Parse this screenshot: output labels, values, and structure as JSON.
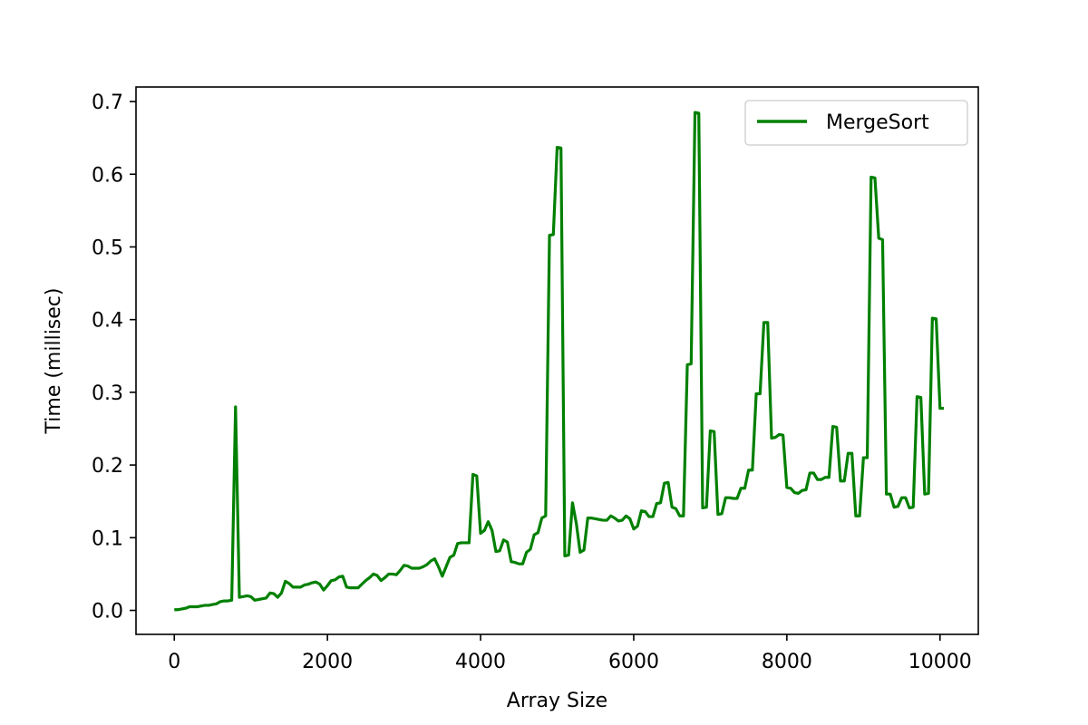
{
  "chart_data": {
    "type": "line",
    "title": "",
    "xlabel": "Array Size",
    "ylabel": "Time (millisec)",
    "xlim": [
      -500,
      10500
    ],
    "ylim": [
      -0.033,
      0.72
    ],
    "xticks": [
      0,
      2000,
      4000,
      6000,
      8000,
      10000
    ],
    "yticks": [
      0.0,
      0.1,
      0.2,
      0.3,
      0.4,
      0.5,
      0.6,
      0.7
    ],
    "xtick_labels": [
      "0",
      "2000",
      "4000",
      "6000",
      "8000",
      "10000"
    ],
    "ytick_labels": [
      "0.0",
      "0.1",
      "0.2",
      "0.3",
      "0.4",
      "0.5",
      "0.6",
      "0.7"
    ],
    "grid": false,
    "legend_position": "top-right",
    "colors": {
      "series": "#008000"
    },
    "series": [
      {
        "name": "MergeSort",
        "x": [
          0,
          50,
          100,
          150,
          200,
          250,
          300,
          350,
          400,
          450,
          500,
          550,
          600,
          650,
          700,
          750,
          800,
          850,
          900,
          950,
          1000,
          1050,
          1100,
          1150,
          1200,
          1250,
          1300,
          1350,
          1400,
          1450,
          1500,
          1550,
          1600,
          1650,
          1700,
          1750,
          1800,
          1850,
          1900,
          1950,
          2000,
          2050,
          2100,
          2150,
          2200,
          2250,
          2300,
          2350,
          2400,
          2450,
          2500,
          2550,
          2600,
          2650,
          2700,
          2750,
          2800,
          2850,
          2900,
          2950,
          3000,
          3050,
          3100,
          3150,
          3200,
          3250,
          3300,
          3350,
          3400,
          3450,
          3500,
          3550,
          3600,
          3650,
          3700,
          3750,
          3800,
          3850,
          3900,
          3950,
          4000,
          4050,
          4100,
          4150,
          4200,
          4250,
          4300,
          4350,
          4400,
          4450,
          4500,
          4550,
          4600,
          4650,
          4700,
          4750,
          4800,
          4850,
          4900,
          4950,
          5000,
          5050,
          5100,
          5150,
          5200,
          5250,
          5300,
          5350,
          5400,
          5450,
          5500,
          5550,
          5600,
          5650,
          5700,
          5750,
          5800,
          5850,
          5900,
          5950,
          6000,
          6050,
          6100,
          6150,
          6200,
          6250,
          6300,
          6350,
          6400,
          6450,
          6500,
          6550,
          6600,
          6650,
          6700,
          6750,
          6800,
          6850,
          6900,
          6950,
          7000,
          7050,
          7100,
          7150,
          7200,
          7250,
          7300,
          7350,
          7400,
          7450,
          7500,
          7550,
          7600,
          7650,
          7700,
          7750,
          7800,
          7850,
          7900,
          7950,
          8000,
          8050,
          8100,
          8150,
          8200,
          8250,
          8300,
          8350,
          8400,
          8450,
          8500,
          8550,
          8600,
          8650,
          8700,
          8750,
          8800,
          8850,
          8900,
          8950,
          9000,
          9050,
          9100,
          9150,
          9200,
          9250,
          9300,
          9350,
          9400,
          9450,
          9500,
          9550,
          9600,
          9650,
          9700,
          9750,
          9800,
          9850,
          9900,
          9950,
          10000,
          10050
        ],
        "values": [
          0.001,
          0.001,
          0.002,
          0.003,
          0.005,
          0.005,
          0.005,
          0.006,
          0.007,
          0.007,
          0.008,
          0.009,
          0.012,
          0.013,
          0.013,
          0.014,
          0.28,
          0.018,
          0.019,
          0.02,
          0.019,
          0.014,
          0.015,
          0.016,
          0.017,
          0.024,
          0.023,
          0.018,
          0.024,
          0.04,
          0.037,
          0.032,
          0.032,
          0.032,
          0.035,
          0.036,
          0.038,
          0.039,
          0.036,
          0.028,
          0.034,
          0.041,
          0.042,
          0.046,
          0.047,
          0.032,
          0.031,
          0.031,
          0.031,
          0.036,
          0.041,
          0.045,
          0.05,
          0.048,
          0.041,
          0.045,
          0.05,
          0.05,
          0.049,
          0.055,
          0.062,
          0.061,
          0.058,
          0.058,
          0.058,
          0.06,
          0.063,
          0.068,
          0.071,
          0.06,
          0.047,
          0.06,
          0.073,
          0.076,
          0.092,
          0.093,
          0.093,
          0.093,
          0.187,
          0.185,
          0.106,
          0.11,
          0.122,
          0.11,
          0.081,
          0.082,
          0.097,
          0.094,
          0.067,
          0.066,
          0.064,
          0.064,
          0.08,
          0.084,
          0.104,
          0.107,
          0.127,
          0.13,
          0.516,
          0.517,
          0.637,
          0.636,
          0.075,
          0.076,
          0.148,
          0.12,
          0.08,
          0.083,
          0.127,
          0.127,
          0.126,
          0.125,
          0.124,
          0.124,
          0.13,
          0.127,
          0.123,
          0.124,
          0.13,
          0.126,
          0.112,
          0.116,
          0.137,
          0.136,
          0.129,
          0.129,
          0.147,
          0.148,
          0.175,
          0.176,
          0.142,
          0.14,
          0.13,
          0.13,
          0.338,
          0.339,
          0.685,
          0.684,
          0.141,
          0.142,
          0.247,
          0.246,
          0.132,
          0.133,
          0.155,
          0.155,
          0.154,
          0.154,
          0.168,
          0.168,
          0.193,
          0.193,
          0.298,
          0.298,
          0.396,
          0.396,
          0.237,
          0.238,
          0.242,
          0.241,
          0.169,
          0.168,
          0.162,
          0.161,
          0.165,
          0.166,
          0.189,
          0.189,
          0.18,
          0.18,
          0.183,
          0.183,
          0.253,
          0.252,
          0.178,
          0.178,
          0.216,
          0.216,
          0.13,
          0.13,
          0.21,
          0.21,
          0.596,
          0.595,
          0.512,
          0.51,
          0.16,
          0.16,
          0.142,
          0.143,
          0.155,
          0.155,
          0.141,
          0.142,
          0.294,
          0.293,
          0.16,
          0.161,
          0.402,
          0.401,
          0.278,
          0.278
        ]
      }
    ]
  }
}
